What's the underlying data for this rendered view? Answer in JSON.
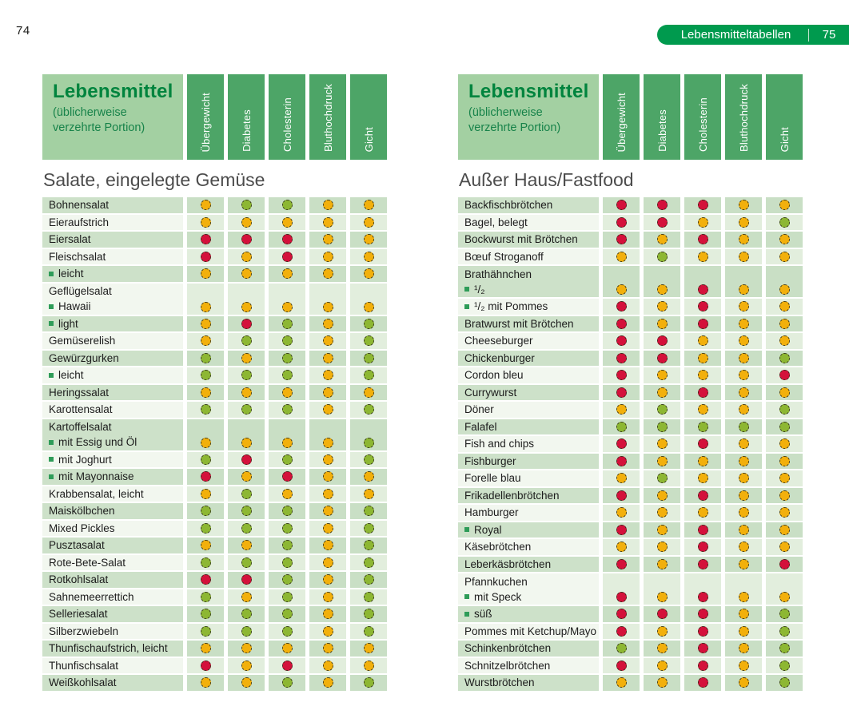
{
  "page_number_left": "74",
  "banner": {
    "label": "Lebensmitteltabellen",
    "page": "75"
  },
  "header": {
    "title": "Lebensmittel",
    "subtitle1": "(üblicherweise",
    "subtitle2": "verzehrte Portion)"
  },
  "columns": [
    "Übergewicht",
    "Diabetes",
    "Cholesterin",
    "Bluthochdruck",
    "Gicht"
  ],
  "colors": {
    "red": "#d4113b",
    "yellow": "#f2b00c",
    "green": "#8db733",
    "bullet_green": "#2e9c58",
    "banner_green": "#009a4e",
    "column_header_green": "#4da567",
    "header_box_green": "#a3d0a2",
    "title_text_green": "#00843e"
  },
  "legend_letters": {
    "R": "red",
    "Y": "yellow",
    "G": "green"
  },
  "tables": {
    "left": {
      "section_title": "Salate, eingelegte Gemüse",
      "rows": [
        {
          "label": "Bohnensalat",
          "dots": [
            "Y",
            "G",
            "G",
            "Y",
            "Y"
          ]
        },
        {
          "label": "Eieraufstrich",
          "dots": [
            "Y",
            "Y",
            "Y",
            "Y",
            "Y"
          ]
        },
        {
          "label": "Eiersalat",
          "dots": [
            "R",
            "R",
            "R",
            "Y",
            "Y"
          ]
        },
        {
          "label": "Fleischsalat",
          "dots": [
            "R",
            "Y",
            "R",
            "Y",
            "Y"
          ]
        },
        {
          "label": "leicht",
          "bullet": true,
          "dots": [
            "Y",
            "Y",
            "Y",
            "Y",
            "Y"
          ]
        },
        {
          "label": "Geflügelsalat",
          "label2": "Hawaii",
          "bullet2": true,
          "dots": [
            "Y",
            "Y",
            "Y",
            "Y",
            "Y"
          ]
        },
        {
          "label": "light",
          "bullet": true,
          "dots": [
            "Y",
            "R",
            "G",
            "Y",
            "G"
          ]
        },
        {
          "label": "Gemüserelish",
          "dots": [
            "Y",
            "G",
            "G",
            "Y",
            "G"
          ]
        },
        {
          "label": "Gewürzgurken",
          "dots": [
            "G",
            "Y",
            "G",
            "Y",
            "G"
          ]
        },
        {
          "label": "leicht",
          "bullet": true,
          "dots": [
            "G",
            "G",
            "G",
            "Y",
            "G"
          ]
        },
        {
          "label": "Heringssalat",
          "dots": [
            "Y",
            "Y",
            "Y",
            "Y",
            "Y"
          ]
        },
        {
          "label": "Karottensalat",
          "dots": [
            "G",
            "G",
            "G",
            "Y",
            "G"
          ]
        },
        {
          "label": "Kartoffelsalat",
          "label2": "mit Essig und Öl",
          "bullet2": true,
          "dots": [
            "Y",
            "Y",
            "Y",
            "Y",
            "G"
          ]
        },
        {
          "label": "mit Joghurt",
          "bullet": true,
          "dots": [
            "G",
            "R",
            "G",
            "Y",
            "G"
          ]
        },
        {
          "label": "mit Mayonnaise",
          "bullet": true,
          "dots": [
            "R",
            "Y",
            "R",
            "Y",
            "Y"
          ]
        },
        {
          "label": "Krabbensalat, leicht",
          "dots": [
            "Y",
            "G",
            "Y",
            "Y",
            "Y"
          ]
        },
        {
          "label": "Maiskölbchen",
          "dots": [
            "G",
            "G",
            "G",
            "Y",
            "G"
          ]
        },
        {
          "label": "Mixed Pickles",
          "dots": [
            "G",
            "G",
            "G",
            "Y",
            "G"
          ]
        },
        {
          "label": "Pusztasalat",
          "dots": [
            "Y",
            "Y",
            "G",
            "Y",
            "G"
          ]
        },
        {
          "label": "Rote-Bete-Salat",
          "dots": [
            "G",
            "G",
            "G",
            "Y",
            "G"
          ]
        },
        {
          "label": "Rotkohlsalat",
          "dots": [
            "R",
            "R",
            "G",
            "Y",
            "G"
          ]
        },
        {
          "label": "Sahnemeerrettich",
          "dots": [
            "G",
            "Y",
            "G",
            "Y",
            "G"
          ]
        },
        {
          "label": "Selleriesalat",
          "dots": [
            "G",
            "G",
            "G",
            "Y",
            "G"
          ]
        },
        {
          "label": "Silberzwiebeln",
          "dots": [
            "G",
            "G",
            "G",
            "Y",
            "G"
          ]
        },
        {
          "label": "Thunfischaufstrich, leicht",
          "dots": [
            "Y",
            "Y",
            "Y",
            "Y",
            "Y"
          ]
        },
        {
          "label": "Thunfischsalat",
          "dots": [
            "R",
            "Y",
            "R",
            "Y",
            "Y"
          ]
        },
        {
          "label": "Weißkohlsalat",
          "dots": [
            "Y",
            "Y",
            "G",
            "Y",
            "G"
          ]
        }
      ]
    },
    "right": {
      "section_title": "Außer Haus/Fastfood",
      "rows": [
        {
          "label": "Backfischbrötchen",
          "dots": [
            "R",
            "R",
            "R",
            "Y",
            "Y"
          ]
        },
        {
          "label": "Bagel, belegt",
          "dots": [
            "R",
            "R",
            "Y",
            "Y",
            "G"
          ]
        },
        {
          "label": "Bockwurst mit Brötchen",
          "dots": [
            "R",
            "Y",
            "R",
            "Y",
            "Y"
          ]
        },
        {
          "label": "Bœuf Stroganoff",
          "dots": [
            "Y",
            "G",
            "Y",
            "Y",
            "Y"
          ]
        },
        {
          "label": "Brathähnchen",
          "label2": "¹/₂",
          "bullet2": true,
          "dots": [
            "Y",
            "Y",
            "R",
            "Y",
            "Y"
          ]
        },
        {
          "label": "¹/₂ mit Pommes",
          "bullet": true,
          "dots": [
            "R",
            "Y",
            "R",
            "Y",
            "Y"
          ]
        },
        {
          "label": "Bratwurst mit Brötchen",
          "dots": [
            "R",
            "Y",
            "R",
            "Y",
            "Y"
          ]
        },
        {
          "label": "Cheeseburger",
          "dots": [
            "R",
            "R",
            "Y",
            "Y",
            "Y"
          ]
        },
        {
          "label": "Chickenburger",
          "dots": [
            "R",
            "R",
            "Y",
            "Y",
            "G"
          ]
        },
        {
          "label": "Cordon bleu",
          "dots": [
            "R",
            "Y",
            "Y",
            "Y",
            "R"
          ]
        },
        {
          "label": "Currywurst",
          "dots": [
            "R",
            "Y",
            "R",
            "Y",
            "Y"
          ]
        },
        {
          "label": "Döner",
          "dots": [
            "Y",
            "G",
            "Y",
            "Y",
            "G"
          ]
        },
        {
          "label": "Falafel",
          "dots": [
            "G",
            "G",
            "G",
            "G",
            "G"
          ]
        },
        {
          "label": "Fish and chips",
          "dots": [
            "R",
            "Y",
            "R",
            "Y",
            "Y"
          ]
        },
        {
          "label": "Fishburger",
          "dots": [
            "R",
            "Y",
            "Y",
            "Y",
            "Y"
          ]
        },
        {
          "label": "Forelle blau",
          "dots": [
            "Y",
            "G",
            "Y",
            "Y",
            "Y"
          ]
        },
        {
          "label": "Frikadellenbrötchen",
          "dots": [
            "R",
            "Y",
            "R",
            "Y",
            "Y"
          ]
        },
        {
          "label": "Hamburger",
          "dots": [
            "Y",
            "Y",
            "Y",
            "Y",
            "Y"
          ]
        },
        {
          "label": "Royal",
          "bullet": true,
          "dots": [
            "R",
            "Y",
            "R",
            "Y",
            "Y"
          ]
        },
        {
          "label": "Käsebrötchen",
          "dots": [
            "Y",
            "Y",
            "R",
            "Y",
            "Y"
          ]
        },
        {
          "label": "Leberkäsbrötchen",
          "dots": [
            "R",
            "Y",
            "R",
            "Y",
            "R"
          ]
        },
        {
          "label": "Pfannkuchen",
          "label2": "mit Speck",
          "bullet2": true,
          "dots": [
            "R",
            "Y",
            "R",
            "Y",
            "Y"
          ]
        },
        {
          "label": "süß",
          "bullet": true,
          "dots": [
            "R",
            "R",
            "R",
            "Y",
            "G"
          ]
        },
        {
          "label": "Pommes mit Ketchup/Mayo",
          "dots": [
            "R",
            "Y",
            "R",
            "Y",
            "G"
          ]
        },
        {
          "label": "Schinkenbrötchen",
          "dots": [
            "G",
            "Y",
            "R",
            "Y",
            "G"
          ]
        },
        {
          "label": "Schnitzelbrötchen",
          "dots": [
            "R",
            "Y",
            "R",
            "Y",
            "G"
          ]
        },
        {
          "label": "Wurstbrötchen",
          "dots": [
            "Y",
            "Y",
            "R",
            "Y",
            "G"
          ]
        }
      ]
    }
  }
}
